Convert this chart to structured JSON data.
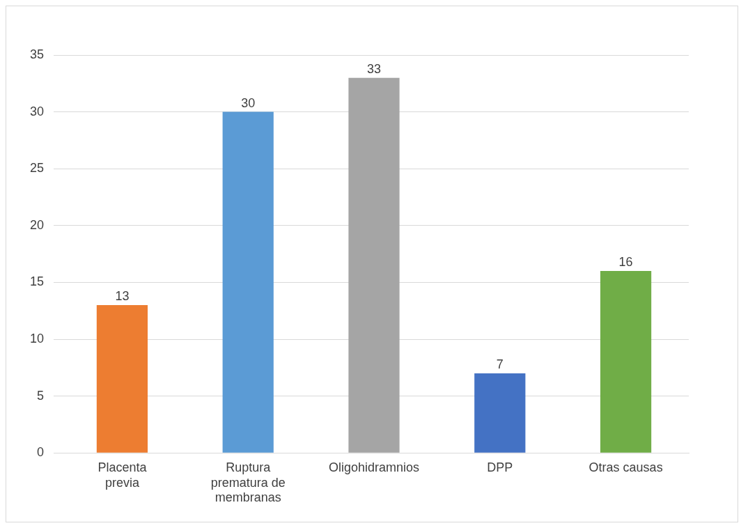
{
  "chart_data": {
    "type": "bar",
    "categories": [
      "Placenta previa",
      "Ruptura prematura de membranas",
      "Oligohidramnios",
      "DPP",
      "Otras causas"
    ],
    "values": [
      13,
      30,
      33,
      7,
      16
    ],
    "colors": [
      "#ed7d31",
      "#5b9bd5",
      "#a5a5a5",
      "#4472c4",
      "#70ad47"
    ],
    "ylim": [
      0,
      35
    ],
    "yticks": [
      0,
      5,
      10,
      15,
      20,
      25,
      30,
      35
    ],
    "grid": "y",
    "legend": false,
    "data_labels": true
  }
}
